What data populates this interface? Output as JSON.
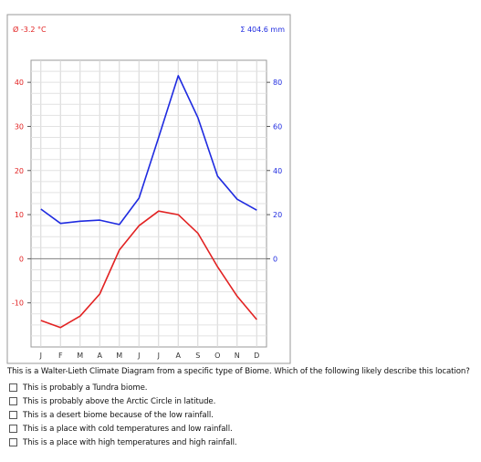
{
  "chart_data": {
    "type": "line",
    "header_left": "Ø -3.2 °C",
    "header_right": "Σ 404.6 mm",
    "categories": [
      "J",
      "F",
      "M",
      "A",
      "M",
      "J",
      "J",
      "A",
      "S",
      "O",
      "N",
      "D"
    ],
    "series": [
      {
        "axis": "left",
        "color": "#e22222",
        "values": [
          -14,
          -15.6,
          -13,
          -8,
          2,
          7.5,
          10.8,
          10,
          5.8,
          -1.8,
          -8.5,
          -13.8
        ]
      },
      {
        "axis": "right",
        "color": "#1f2be0",
        "values": [
          22.5,
          16,
          17,
          17.5,
          15.5,
          27.5,
          55,
          83,
          64,
          37.5,
          27,
          22
        ]
      }
    ],
    "y_left": {
      "min": -20,
      "max": 45,
      "ticks": [
        40,
        30,
        20,
        10,
        0,
        -10
      ],
      "color": "#e22222"
    },
    "y_right": {
      "ticks": [
        80,
        60,
        40,
        20,
        0
      ],
      "color": "#1f2be0"
    },
    "grid": true
  },
  "question": "This is a Walter-Lieth Climate Diagram from a specific type of Biome. Which of the following likely describe this location?",
  "options": [
    "This is probably a Tundra biome.",
    "This is probably above the Arctic Circle in latitude.",
    "This is a desert biome because of the low rainfall.",
    "This is a place with cold temperatures and low rainfall.",
    "This is a place with high temperatures and high rainfall."
  ]
}
